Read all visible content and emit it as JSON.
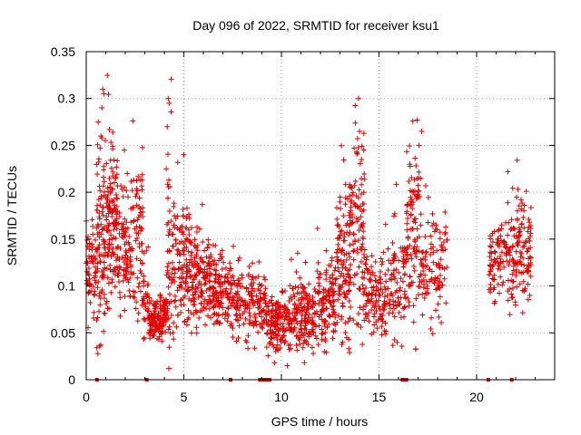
{
  "chart_data": {
    "type": "scatter",
    "title": "Day 096 of 2022, SRMTID for receiver ksu1",
    "xlabel": "GPS time / hours",
    "ylabel": "SRMTID / TECUs",
    "xlim": [
      0,
      24
    ],
    "ylim": [
      0,
      0.35
    ],
    "xticks": [
      0,
      5,
      10,
      15,
      20
    ],
    "xtick_labels": [
      "0",
      "5",
      "10",
      "15",
      "20"
    ],
    "yticks": [
      0,
      0.05,
      0.1,
      0.15,
      0.2,
      0.25,
      0.3,
      0.35
    ],
    "ytick_labels": [
      "0",
      "0.05",
      "0.1",
      "0.15",
      "0.2",
      "0.25",
      "0.3",
      "0.35"
    ],
    "grid": true,
    "marker": "+",
    "color": "#e00000",
    "series": [
      {
        "name": "SRMTID",
        "clusters": [
          {
            "x": [
              0.0,
              0.5
            ],
            "center": 0.115,
            "spread": 0.025,
            "count": 60
          },
          {
            "x": [
              0.5,
              1.1
            ],
            "center": 0.15,
            "spread": 0.05,
            "count": 110
          },
          {
            "x": [
              1.1,
              1.6
            ],
            "center": 0.17,
            "spread": 0.04,
            "count": 110
          },
          {
            "x": [
              1.6,
              2.3
            ],
            "center": 0.14,
            "spread": 0.035,
            "count": 90
          },
          {
            "x": [
              2.3,
              2.9
            ],
            "center": 0.15,
            "spread": 0.04,
            "count": 70
          },
          {
            "x": [
              2.9,
              3.2
            ],
            "center": 0.09,
            "spread": 0.02,
            "count": 30
          },
          {
            "x": [
              3.2,
              4.1
            ],
            "center": 0.065,
            "spread": 0.012,
            "count": 130
          },
          {
            "x": [
              4.1,
              4.5
            ],
            "center": 0.13,
            "spread": 0.06,
            "count": 60
          },
          {
            "x": [
              4.5,
              5.3
            ],
            "center": 0.12,
            "spread": 0.04,
            "count": 110
          },
          {
            "x": [
              5.3,
              6.3
            ],
            "center": 0.105,
            "spread": 0.025,
            "count": 130
          },
          {
            "x": [
              6.3,
              7.5
            ],
            "center": 0.095,
            "spread": 0.02,
            "count": 150
          },
          {
            "x": [
              7.5,
              9.2
            ],
            "center": 0.08,
            "spread": 0.018,
            "count": 160
          },
          {
            "x": [
              9.2,
              10.5
            ],
            "center": 0.06,
            "spread": 0.015,
            "count": 160
          },
          {
            "x": [
              10.5,
              11.8
            ],
            "center": 0.07,
            "spread": 0.02,
            "count": 150
          },
          {
            "x": [
              11.8,
              12.8
            ],
            "center": 0.085,
            "spread": 0.025,
            "count": 120
          },
          {
            "x": [
              12.8,
              13.5
            ],
            "center": 0.12,
            "spread": 0.04,
            "count": 110
          },
          {
            "x": [
              13.5,
              14.3
            ],
            "center": 0.15,
            "spread": 0.05,
            "count": 120
          },
          {
            "x": [
              14.3,
              15.7
            ],
            "center": 0.09,
            "spread": 0.02,
            "count": 130
          },
          {
            "x": [
              15.7,
              16.4
            ],
            "center": 0.1,
            "spread": 0.03,
            "count": 70
          },
          {
            "x": [
              16.4,
              17.2
            ],
            "center": 0.16,
            "spread": 0.05,
            "count": 110
          },
          {
            "x": [
              17.2,
              18.5
            ],
            "center": 0.12,
            "spread": 0.03,
            "count": 100
          },
          {
            "x": [
              20.6,
              21.4
            ],
            "center": 0.125,
            "spread": 0.02,
            "count": 70
          },
          {
            "x": [
              21.4,
              22.1
            ],
            "center": 0.14,
            "spread": 0.03,
            "count": 70
          },
          {
            "x": [
              22.1,
              22.8
            ],
            "center": 0.14,
            "spread": 0.03,
            "count": 80
          }
        ],
        "spikes": [
          {
            "x": 0.85,
            "y": 0.31
          },
          {
            "x": 0.9,
            "y": 0.305
          },
          {
            "x": 0.8,
            "y": 0.29
          },
          {
            "x": 0.75,
            "y": 0.26
          },
          {
            "x": 4.2,
            "y": 0.3
          },
          {
            "x": 4.25,
            "y": 0.295
          },
          {
            "x": 4.15,
            "y": 0.27
          },
          {
            "x": 4.1,
            "y": 0.225
          },
          {
            "x": 5.0,
            "y": 0.24
          },
          {
            "x": 13.95,
            "y": 0.3
          },
          {
            "x": 14.0,
            "y": 0.265
          },
          {
            "x": 14.1,
            "y": 0.235
          },
          {
            "x": 16.95,
            "y": 0.277
          },
          {
            "x": 17.05,
            "y": 0.25
          },
          {
            "x": 21.6,
            "y": 0.222
          },
          {
            "x": 1.95,
            "y": 0.245
          },
          {
            "x": 2.1,
            "y": 0.22
          },
          {
            "x": 10.3,
            "y": 0.015
          },
          {
            "x": 0.75,
            "y": 0.037
          },
          {
            "x": 12.2,
            "y": 0.03
          }
        ]
      }
    ],
    "baseline_markers": [
      0.55,
      3.1,
      7.4,
      8.9,
      9.0,
      9.1,
      9.2,
      9.3,
      9.4,
      16.2,
      16.3,
      16.4,
      20.6,
      21.8
    ]
  }
}
